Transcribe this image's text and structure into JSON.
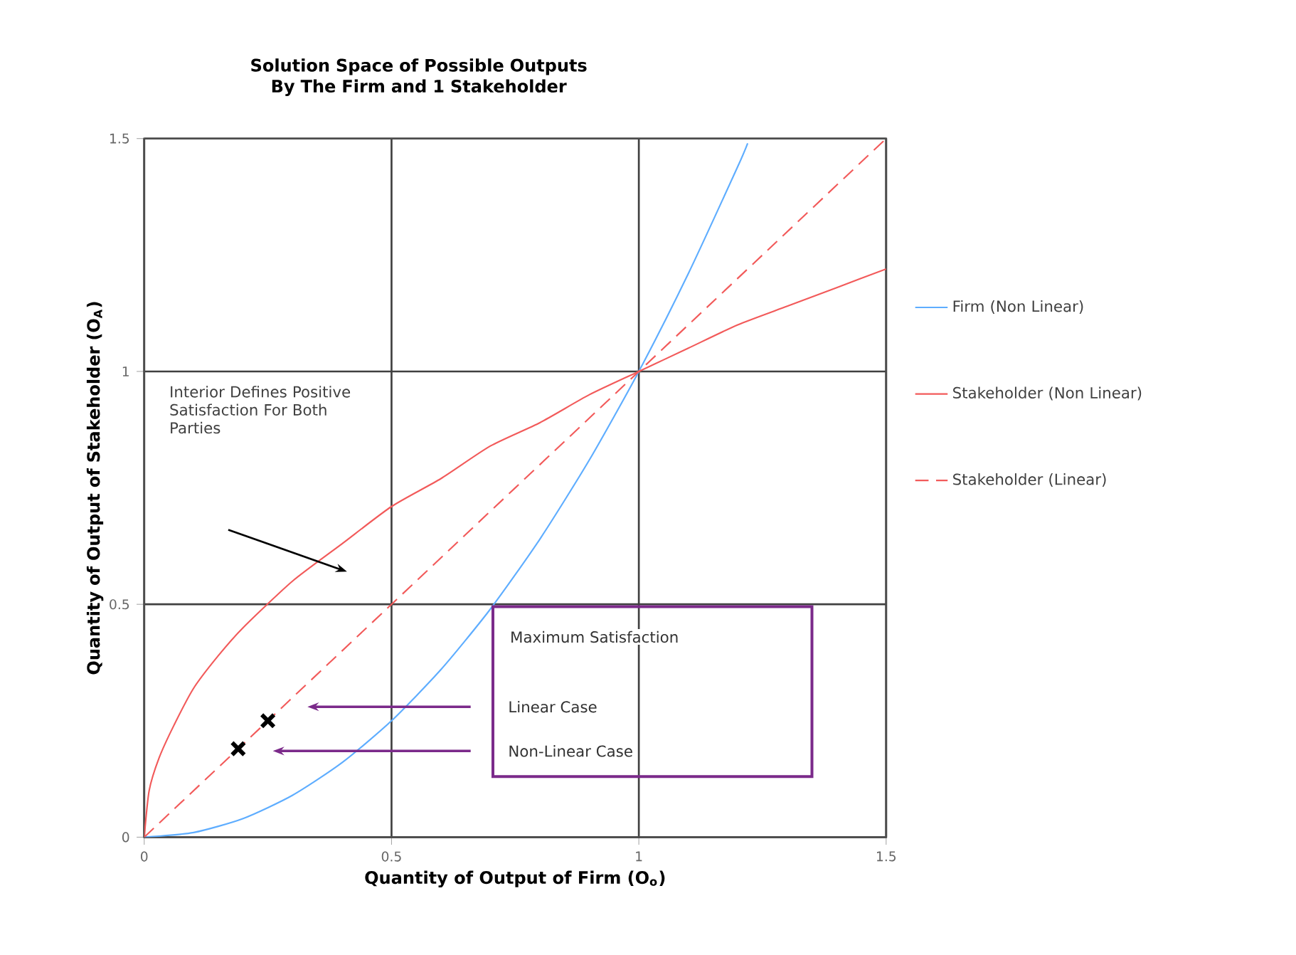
{
  "chart_data": {
    "type": "line",
    "title": "Solution Space of Possible Outputs By The Firm and 1 Stakeholder",
    "xlabel": "Quantity of Output of Firm (O$_{o}$)",
    "ylabel": "Quantity of Output of Stakeholder (O$_{A}$)",
    "xlim": [
      0,
      1.5
    ],
    "ylim": [
      0,
      1.5
    ],
    "xticks": [
      0,
      0.5,
      1,
      1.5
    ],
    "yticks": [
      0,
      0.5,
      1,
      1.5
    ],
    "grid": true,
    "legend": "right",
    "series": [
      {
        "name": "Firm (Non Linear)",
        "color": "#5eadff",
        "x": [
          0,
          0.1,
          0.2,
          0.3,
          0.4,
          0.5,
          0.6,
          0.7,
          0.8,
          0.9,
          1.0,
          1.1,
          1.2,
          1.22
        ],
        "values": [
          0,
          0.01,
          0.04,
          0.09,
          0.16,
          0.25,
          0.36,
          0.49,
          0.64,
          0.81,
          1,
          1.21,
          1.44,
          1.49
        ],
        "line_style": "solid"
      },
      {
        "name": "Stakeholder (Non Linear)",
        "color": "#f25a5a",
        "x": [
          0,
          0.01,
          0.03,
          0.06,
          0.1,
          0.15,
          0.2,
          0.3,
          0.4,
          0.5,
          0.6,
          0.7,
          0.8,
          0.9,
          1,
          1.1,
          1.2,
          1.3,
          1.4,
          1.5
        ],
        "values": [
          0,
          0.1,
          0.17,
          0.24,
          0.32,
          0.39,
          0.45,
          0.55,
          0.63,
          0.71,
          0.77,
          0.84,
          0.89,
          0.95,
          1,
          1.05,
          1.1,
          1.14,
          1.18,
          1.22
        ],
        "line_style": "solid"
      },
      {
        "name": "Stakeholder (Linear)",
        "color": "#f25a5a",
        "x": [
          0,
          1.5
        ],
        "values": [
          0,
          1.5
        ],
        "line_style": "dashed"
      },
      {
        "type": "scatter",
        "color": "#000000",
        "marker": "cross",
        "x": [
          0.19,
          0.25
        ],
        "values": [
          0.19,
          0.25
        ]
      }
    ],
    "annotations": [
      "Interior Defines Positive Satisfaction For Both Parties",
      "Maximum Satisfaction",
      "Linear Case",
      "Non-Linear Case"
    ]
  }
}
